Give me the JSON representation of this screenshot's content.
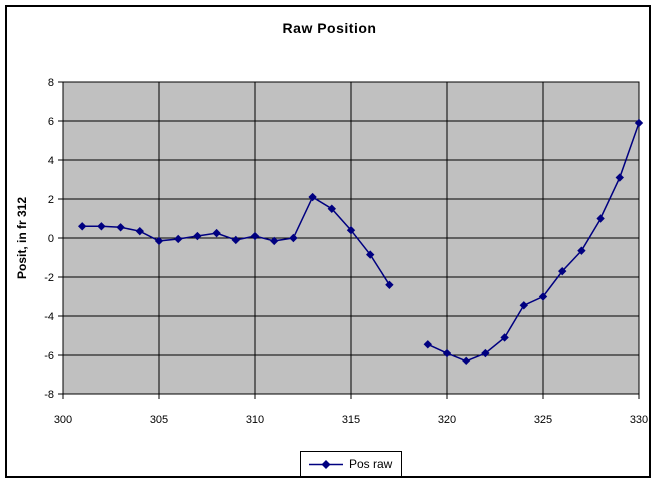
{
  "chart_data": {
    "type": "line",
    "title": "Raw Position",
    "xlabel": "",
    "ylabel": "Posit, in fr 312",
    "xlim": [
      300,
      330
    ],
    "ylim": [
      -8,
      8
    ],
    "x_ticks": [
      300,
      305,
      310,
      315,
      320,
      325,
      330
    ],
    "y_ticks": [
      8,
      6,
      4,
      2,
      0,
      -2,
      -4,
      -6,
      -8
    ],
    "grid": true,
    "legend": {
      "position": "bottom-center",
      "entries": [
        "Pos raw"
      ]
    },
    "colors": {
      "plot_background": "#c0c0c0",
      "gridline": "#000000",
      "series": "#000080",
      "text": "#000000"
    },
    "series": [
      {
        "name": "Pos raw",
        "color": "#000080",
        "marker": "diamond",
        "x": [
          301,
          302,
          303,
          304,
          305,
          306,
          307,
          308,
          309,
          310,
          311,
          312,
          313,
          314,
          315,
          316,
          317,
          318,
          319,
          320,
          321,
          322,
          323,
          324,
          325,
          326,
          327,
          328,
          329,
          330
        ],
        "y": [
          0.6,
          0.6,
          0.55,
          0.35,
          -0.15,
          -0.05,
          0.1,
          0.25,
          -0.1,
          0.1,
          -0.15,
          0.0,
          2.1,
          1.5,
          0.4,
          -0.85,
          -2.4,
          null,
          -5.45,
          -5.9,
          -6.3,
          -5.9,
          -5.1,
          -3.45,
          -3.0,
          -1.7,
          -0.65,
          1.0,
          3.1,
          5.9
        ]
      }
    ]
  }
}
